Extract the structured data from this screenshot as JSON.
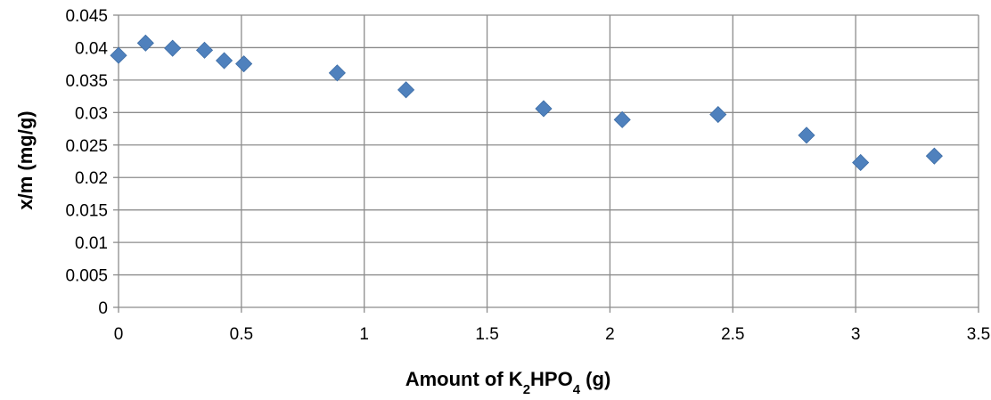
{
  "chart_data": {
    "type": "scatter",
    "xlabel": {
      "parts": [
        {
          "text": "Amount of K",
          "sub": false
        },
        {
          "text": "2",
          "sub": true
        },
        {
          "text": "HPO",
          "sub": false
        },
        {
          "text": "4",
          "sub": true
        },
        {
          "text": " (g)",
          "sub": false
        }
      ]
    },
    "ylabel": "x/m (mg/g)",
    "xlim": [
      0,
      3.5
    ],
    "ylim": [
      0,
      0.045
    ],
    "x_ticks": [
      "0",
      "0.5",
      "1",
      "1.5",
      "2",
      "2.5",
      "3",
      "3.5"
    ],
    "y_ticks": [
      "0",
      "0.005",
      "0.01",
      "0.015",
      "0.02",
      "0.025",
      "0.03",
      "0.035",
      "0.04",
      "0.045"
    ],
    "grid": true,
    "legend": "none",
    "marker": "diamond",
    "color": "#4f81bd",
    "series": [
      {
        "points": [
          {
            "x": 0.0,
            "y": 0.0388
          },
          {
            "x": 0.11,
            "y": 0.0407
          },
          {
            "x": 0.22,
            "y": 0.0399
          },
          {
            "x": 0.35,
            "y": 0.0396
          },
          {
            "x": 0.43,
            "y": 0.038
          },
          {
            "x": 0.51,
            "y": 0.0375
          },
          {
            "x": 0.89,
            "y": 0.0361
          },
          {
            "x": 1.17,
            "y": 0.0335
          },
          {
            "x": 1.73,
            "y": 0.0306
          },
          {
            "x": 2.05,
            "y": 0.0289
          },
          {
            "x": 2.44,
            "y": 0.0297
          },
          {
            "x": 2.8,
            "y": 0.0265
          },
          {
            "x": 3.02,
            "y": 0.0223
          },
          {
            "x": 3.32,
            "y": 0.0233
          }
        ]
      }
    ]
  }
}
